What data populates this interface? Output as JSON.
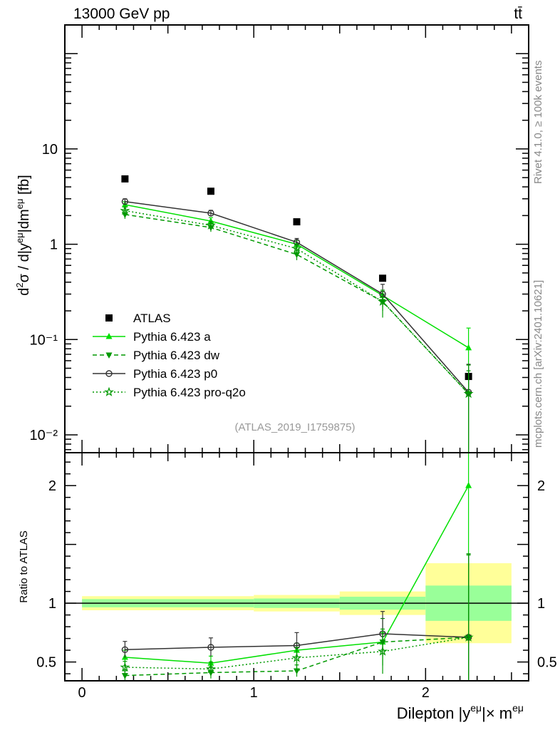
{
  "header": {
    "energy": "13000 GeV pp",
    "process": "tt̄"
  },
  "side": {
    "rivet": "Rivet 4.1.0, ≥ 100k events",
    "mcplots": "mcplots.cern.ch [arXiv:2401.10621]"
  },
  "analysis_id": "(ATLAS_2019_I1759875)",
  "colors": {
    "bright_green": "#00e000",
    "dark_green": "#009900",
    "gray": "#333333",
    "yellow_band": "#ffff99",
    "green_band": "#99ff99"
  },
  "chart_data": [
    {
      "type": "scatter",
      "panel": "main",
      "yscale": "log",
      "ylabel": "d²σ / d|yᵉᵘ|dmᵉᵘ [fb]",
      "ylim": [
        0.0065,
        200
      ],
      "xlim": [
        -0.1,
        2.6
      ],
      "ytick_labels": [
        "10⁻²",
        "10⁻¹",
        "1",
        "10"
      ],
      "ytick_values": [
        0.01,
        0.1,
        1,
        10
      ],
      "x": [
        0.25,
        0.75,
        1.25,
        1.75,
        2.25
      ],
      "series": [
        {
          "name": "ATLAS",
          "style": "data",
          "values": [
            4.85,
            3.6,
            1.72,
            0.44,
            0.041
          ],
          "errors": [
            0,
            0,
            0,
            0,
            0
          ]
        },
        {
          "name": "Pythia 6.423 a",
          "style": "a",
          "values": [
            2.6,
            1.75,
            1.0,
            0.29,
            0.082
          ],
          "errors": [
            0.2,
            0.15,
            0.1,
            0.03,
            0.05
          ]
        },
        {
          "name": "Pythia 6.423 dw",
          "style": "dw",
          "values": [
            2.05,
            1.5,
            0.78,
            0.25,
            0.027
          ],
          "errors": [
            0.2,
            0.15,
            0.1,
            0.05,
            0.02
          ]
        },
        {
          "name": "Pythia 6.423 p0",
          "style": "p0",
          "values": [
            2.8,
            2.12,
            1.05,
            0.3,
            0.028
          ],
          "errors": [
            0.2,
            0.15,
            0.1,
            0.08,
            0.027
          ]
        },
        {
          "name": "Pythia 6.423 pro-q2o",
          "style": "pro",
          "values": [
            2.25,
            1.58,
            0.9,
            0.25,
            0.027
          ],
          "errors": [
            0.2,
            0.15,
            0.1,
            0.08,
            0.027
          ]
        }
      ]
    },
    {
      "type": "scatter",
      "panel": "ratio",
      "ylabel": "Ratio to ATLAS",
      "xlabel": "Dilepton |yᵉᵘ|× mᵉᵘ",
      "ylim": [
        0.34,
        2.28
      ],
      "xlim": [
        -0.1,
        2.6
      ],
      "ytick_labels": [
        "0.5",
        "1",
        "2"
      ],
      "ytick_values": [
        0.5,
        1,
        2
      ],
      "xtick_labels": [
        "0",
        "1",
        "2"
      ],
      "xtick_values": [
        0,
        1,
        2
      ],
      "bands": [
        {
          "x0": 0.0,
          "x1": 1.0,
          "yellow": [
            0.94,
            1.06
          ],
          "green": [
            0.965,
            1.035
          ]
        },
        {
          "x0": 1.0,
          "x1": 1.5,
          "yellow": [
            0.93,
            1.07
          ],
          "green": [
            0.96,
            1.04
          ]
        },
        {
          "x0": 1.5,
          "x1": 2.0,
          "yellow": [
            0.9,
            1.1
          ],
          "green": [
            0.945,
            1.055
          ]
        },
        {
          "x0": 2.0,
          "x1": 2.5,
          "yellow": [
            0.66,
            1.34
          ],
          "green": [
            0.85,
            1.15
          ]
        }
      ],
      "x": [
        0.25,
        0.75,
        1.25,
        1.75,
        2.25
      ],
      "series": [
        {
          "name": "Pythia 6.423 a",
          "style": "a",
          "values": [
            0.54,
            0.49,
            0.6,
            0.67,
            2.0
          ],
          "errors": [
            0.06,
            0.06,
            0.06,
            0.08,
            1.3
          ]
        },
        {
          "name": "Pythia 6.423 dw",
          "style": "dw",
          "values": [
            0.385,
            0.41,
            0.425,
            0.67,
            0.71
          ],
          "errors": [
            0.04,
            0.05,
            0.05,
            0.2,
            0.7
          ]
        },
        {
          "name": "Pythia 6.423 p0",
          "style": "p0",
          "values": [
            0.605,
            0.625,
            0.64,
            0.74,
            0.71
          ],
          "errors": [
            0.07,
            0.08,
            0.11,
            0.19,
            0.71
          ]
        },
        {
          "name": "Pythia 6.423 pro-q2o",
          "style": "pro",
          "values": [
            0.455,
            0.44,
            0.535,
            0.59,
            0.71
          ],
          "errors": [
            0.05,
            0.06,
            0.09,
            0.19,
            0.71
          ]
        }
      ]
    }
  ]
}
